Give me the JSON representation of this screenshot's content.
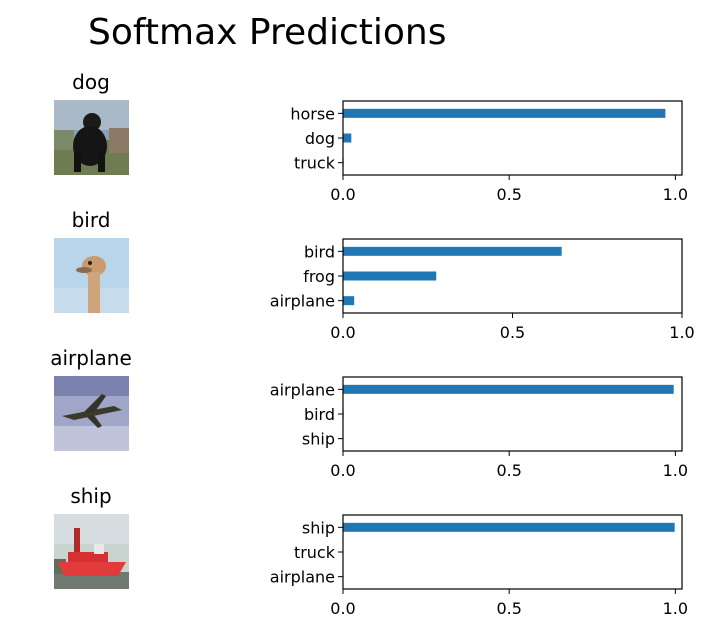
{
  "title": "Softmax Predictions",
  "colors": {
    "bar": "#1f77b4",
    "axis": "#000000"
  },
  "panels": [
    {
      "image_title": "dog",
      "image_icon": "dog-photo"
    },
    {
      "image_title": "bird",
      "image_icon": "ostrich-photo"
    },
    {
      "image_title": "airplane",
      "image_icon": "airplane-photo"
    },
    {
      "image_title": "ship",
      "image_icon": "ship-photo"
    }
  ],
  "chart_data": [
    {
      "type": "bar",
      "orientation": "horizontal",
      "categories": [
        "horse",
        "dog",
        "truck"
      ],
      "values": [
        0.97,
        0.025,
        0.002
      ],
      "xlim": [
        0,
        1.02
      ],
      "xticks": [
        0,
        0.5,
        1.0
      ],
      "xtick_labels": [
        "0.0",
        "0.5",
        "1.0"
      ],
      "grid": false
    },
    {
      "type": "bar",
      "orientation": "horizontal",
      "categories": [
        "bird",
        "frog",
        "airplane"
      ],
      "values": [
        0.645,
        0.275,
        0.033
      ],
      "xlim": [
        0,
        1.0
      ],
      "xticks": [
        0,
        0.5,
        1.0
      ],
      "xtick_labels": [
        "0.0",
        "0.5",
        "1.0"
      ],
      "grid": false
    },
    {
      "type": "bar",
      "orientation": "horizontal",
      "categories": [
        "airplane",
        "bird",
        "ship"
      ],
      "values": [
        0.995,
        0.002,
        0.001
      ],
      "xlim": [
        0,
        1.02
      ],
      "xticks": [
        0,
        0.5,
        1.0
      ],
      "xtick_labels": [
        "0.0",
        "0.5",
        "1.0"
      ],
      "grid": false
    },
    {
      "type": "bar",
      "orientation": "horizontal",
      "categories": [
        "ship",
        "truck",
        "airplane"
      ],
      "values": [
        0.998,
        0.001,
        0.001
      ],
      "xlim": [
        0,
        1.02
      ],
      "xticks": [
        0,
        0.5,
        1.0
      ],
      "xtick_labels": [
        "0.0",
        "0.5",
        "1.0"
      ],
      "grid": false
    }
  ]
}
